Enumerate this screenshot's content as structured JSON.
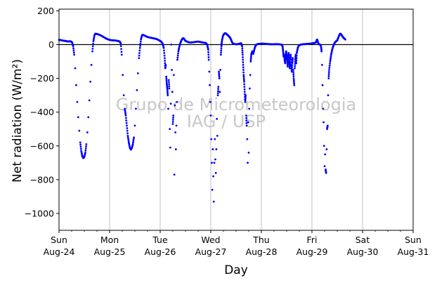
{
  "chart_data": {
    "type": "scatter",
    "xlabel": "Day",
    "ylabel": "Net radiation (W/m²)",
    "ylim": [
      -1100,
      210
    ],
    "xlim": [
      "2014-08-24",
      "2014-08-31"
    ],
    "yticks": [
      200,
      0,
      -200,
      -400,
      -600,
      -800,
      -1000
    ],
    "xticks": [
      {
        "day": "Sun",
        "date": "Aug-24"
      },
      {
        "day": "Mon",
        "date": "Aug-25"
      },
      {
        "day": "Tue",
        "date": "Aug-26"
      },
      {
        "day": "Wed",
        "date": "Aug-27"
      },
      {
        "day": "Thu",
        "date": "Aug-28"
      },
      {
        "day": "Fri",
        "date": "Aug-29"
      },
      {
        "day": "Sat",
        "date": "Aug-30"
      },
      {
        "day": "Sun",
        "date": "Aug-31"
      }
    ],
    "grid": "vertical",
    "zero_line": true,
    "marker_color": "#0000ff",
    "watermark": [
      "Grupo de Micrometeorologia",
      "IAG / USP"
    ],
    "series": [
      {
        "x_unit": "day",
        "points": [
          [
            0.0,
            28
          ],
          [
            0.03,
            27
          ],
          [
            0.06,
            25
          ],
          [
            0.09,
            23
          ],
          [
            0.12,
            22
          ],
          [
            0.15,
            20
          ],
          [
            0.18,
            18
          ],
          [
            0.21,
            20
          ],
          [
            0.24,
            18
          ],
          [
            0.26,
            12
          ],
          [
            0.28,
            -10
          ],
          [
            0.3,
            -60
          ],
          [
            0.32,
            -140
          ],
          [
            0.34,
            -240
          ],
          [
            0.36,
            -340
          ],
          [
            0.38,
            -430
          ],
          [
            0.4,
            -510
          ],
          [
            0.42,
            -580
          ],
          [
            0.44,
            -630
          ],
          [
            0.46,
            -660
          ],
          [
            0.48,
            -672
          ],
          [
            0.5,
            -665
          ],
          [
            0.52,
            -640
          ],
          [
            0.54,
            -590
          ],
          [
            0.56,
            -520
          ],
          [
            0.58,
            -430
          ],
          [
            0.6,
            -330
          ],
          [
            0.62,
            -220
          ],
          [
            0.64,
            -120
          ],
          [
            0.66,
            -40
          ],
          [
            0.68,
            20
          ],
          [
            0.7,
            55
          ],
          [
            0.72,
            65
          ],
          [
            0.76,
            62
          ],
          [
            0.8,
            58
          ],
          [
            0.84,
            52
          ],
          [
            0.88,
            45
          ],
          [
            0.92,
            38
          ],
          [
            0.96,
            32
          ],
          [
            1.0,
            28
          ],
          [
            1.04,
            26
          ],
          [
            1.08,
            25
          ],
          [
            1.12,
            24
          ],
          [
            1.16,
            22
          ],
          [
            1.2,
            18
          ],
          [
            1.22,
            8
          ],
          [
            1.24,
            -60
          ],
          [
            1.26,
            -180
          ],
          [
            1.28,
            -300
          ],
          [
            1.3,
            -380
          ],
          [
            1.32,
            -420
          ],
          [
            1.34,
            -480
          ],
          [
            1.36,
            -540
          ],
          [
            1.38,
            -580
          ],
          [
            1.4,
            -610
          ],
          [
            1.42,
            -622
          ],
          [
            1.44,
            -612
          ],
          [
            1.46,
            -590
          ],
          [
            1.48,
            -550
          ],
          [
            1.5,
            -480
          ],
          [
            1.52,
            -380
          ],
          [
            1.54,
            -270
          ],
          [
            1.56,
            -170
          ],
          [
            1.58,
            -80
          ],
          [
            1.6,
            -20
          ],
          [
            1.62,
            30
          ],
          [
            1.64,
            55
          ],
          [
            1.66,
            58
          ],
          [
            1.7,
            52
          ],
          [
            1.74,
            46
          ],
          [
            1.78,
            43
          ],
          [
            1.82,
            40
          ],
          [
            1.86,
            38
          ],
          [
            1.9,
            35
          ],
          [
            1.94,
            32
          ],
          [
            1.98,
            25
          ],
          [
            2.02,
            18
          ],
          [
            2.05,
            5
          ],
          [
            2.07,
            -20
          ],
          [
            2.09,
            -80
          ],
          [
            2.1,
            -140
          ],
          [
            2.11,
            -120
          ],
          [
            2.12,
            -190
          ],
          [
            2.13,
            -230
          ],
          [
            2.14,
            -260
          ],
          [
            2.15,
            -300
          ],
          [
            2.16,
            -380
          ],
          [
            2.17,
            -210
          ],
          [
            2.18,
            -260
          ],
          [
            2.19,
            -500
          ],
          [
            2.2,
            -610
          ],
          [
            2.21,
            -350
          ],
          [
            2.22,
            0
          ],
          [
            2.23,
            -150
          ],
          [
            2.24,
            -280
          ],
          [
            2.25,
            -470
          ],
          [
            2.26,
            -420
          ],
          [
            2.27,
            -180
          ],
          [
            2.28,
            -770
          ],
          [
            2.29,
            -360
          ],
          [
            2.3,
            -520
          ],
          [
            2.31,
            -620
          ],
          [
            2.32,
            -480
          ],
          [
            2.33,
            -340
          ],
          [
            2.34,
            -90
          ],
          [
            2.36,
            -40
          ],
          [
            2.38,
            -10
          ],
          [
            2.4,
            10
          ],
          [
            2.42,
            25
          ],
          [
            2.44,
            35
          ],
          [
            2.46,
            38
          ],
          [
            2.48,
            30
          ],
          [
            2.5,
            22
          ],
          [
            2.55,
            15
          ],
          [
            2.6,
            12
          ],
          [
            2.65,
            14
          ],
          [
            2.7,
            16
          ],
          [
            2.75,
            18
          ],
          [
            2.8,
            15
          ],
          [
            2.85,
            12
          ],
          [
            2.9,
            10
          ],
          [
            2.93,
            0
          ],
          [
            2.95,
            -30
          ],
          [
            2.96,
            -90
          ],
          [
            2.97,
            -160
          ],
          [
            2.98,
            -240
          ],
          [
            2.99,
            -340
          ],
          [
            3.0,
            -420
          ],
          [
            3.01,
            -560
          ],
          [
            3.02,
            -700
          ],
          [
            3.03,
            -860
          ],
          [
            3.04,
            -620
          ],
          [
            3.05,
            -780
          ],
          [
            3.06,
            -930
          ],
          [
            3.07,
            -700
          ],
          [
            3.08,
            -560
          ],
          [
            3.09,
            -680
          ],
          [
            3.1,
            -760
          ],
          [
            3.11,
            -620
          ],
          [
            3.12,
            -440
          ],
          [
            3.13,
            -540
          ],
          [
            3.14,
            -300
          ],
          [
            3.15,
            -250
          ],
          [
            3.16,
            -160
          ],
          [
            3.17,
            -200
          ],
          [
            3.18,
            -280
          ],
          [
            3.19,
            -150
          ],
          [
            3.2,
            -60
          ],
          [
            3.21,
            -10
          ],
          [
            3.22,
            20
          ],
          [
            3.24,
            50
          ],
          [
            3.26,
            62
          ],
          [
            3.28,
            68
          ],
          [
            3.3,
            65
          ],
          [
            3.32,
            60
          ],
          [
            3.34,
            55
          ],
          [
            3.36,
            48
          ],
          [
            3.38,
            42
          ],
          [
            3.4,
            30
          ],
          [
            3.42,
            15
          ],
          [
            3.44,
            5
          ],
          [
            3.48,
            3
          ],
          [
            3.52,
            2
          ],
          [
            3.56,
            5
          ],
          [
            3.6,
            8
          ],
          [
            3.62,
            -10
          ],
          [
            3.63,
            -60
          ],
          [
            3.64,
            -120
          ],
          [
            3.65,
            -180
          ],
          [
            3.66,
            -220
          ],
          [
            3.67,
            -280
          ],
          [
            3.68,
            -340
          ],
          [
            3.69,
            -300
          ],
          [
            3.7,
            -420
          ],
          [
            3.71,
            -480
          ],
          [
            3.72,
            -560
          ],
          [
            3.73,
            -700
          ],
          [
            3.74,
            -460
          ],
          [
            3.75,
            -640
          ],
          [
            3.76,
            -380
          ],
          [
            3.77,
            -260
          ],
          [
            3.78,
            -180
          ],
          [
            3.79,
            -100
          ],
          [
            3.8,
            -60
          ],
          [
            3.82,
            -40
          ],
          [
            3.84,
            -55
          ],
          [
            3.86,
            -30
          ],
          [
            3.88,
            -10
          ],
          [
            3.9,
            0
          ],
          [
            3.94,
            4
          ],
          [
            3.98,
            5
          ],
          [
            4.02,
            6
          ],
          [
            4.06,
            5
          ],
          [
            4.1,
            4
          ],
          [
            4.15,
            3
          ],
          [
            4.2,
            2
          ],
          [
            4.25,
            2
          ],
          [
            4.3,
            3
          ],
          [
            4.35,
            2
          ],
          [
            4.4,
            0
          ],
          [
            4.42,
            -10
          ],
          [
            4.43,
            -40
          ],
          [
            4.44,
            -70
          ],
          [
            4.45,
            -60
          ],
          [
            4.46,
            -90
          ],
          [
            4.47,
            -110
          ],
          [
            4.48,
            -70
          ],
          [
            4.49,
            -40
          ],
          [
            4.5,
            -60
          ],
          [
            4.51,
            -90
          ],
          [
            4.52,
            -130
          ],
          [
            4.53,
            -80
          ],
          [
            4.54,
            -50
          ],
          [
            4.55,
            -100
          ],
          [
            4.56,
            -140
          ],
          [
            4.57,
            -90
          ],
          [
            4.58,
            -60
          ],
          [
            4.59,
            -120
          ],
          [
            4.6,
            -160
          ],
          [
            4.61,
            -110
          ],
          [
            4.62,
            -80
          ],
          [
            4.63,
            -150
          ],
          [
            4.64,
            -200
          ],
          [
            4.65,
            -240
          ],
          [
            4.66,
            -140
          ],
          [
            4.67,
            -90
          ],
          [
            4.68,
            -60
          ],
          [
            4.69,
            -110
          ],
          [
            4.7,
            -50
          ],
          [
            4.72,
            -20
          ],
          [
            4.74,
            -5
          ],
          [
            4.78,
            0
          ],
          [
            4.82,
            2
          ],
          [
            4.86,
            3
          ],
          [
            4.9,
            4
          ],
          [
            4.94,
            5
          ],
          [
            4.98,
            6
          ],
          [
            5.02,
            8
          ],
          [
            5.06,
            10
          ],
          [
            5.08,
            15
          ],
          [
            5.1,
            30
          ],
          [
            5.11,
            25
          ],
          [
            5.12,
            10
          ],
          [
            5.14,
            2
          ],
          [
            5.16,
            0
          ],
          [
            5.18,
            -10
          ],
          [
            5.19,
            -40
          ],
          [
            5.2,
            -120
          ],
          [
            5.21,
            -240
          ],
          [
            5.22,
            -380
          ],
          [
            5.23,
            -460
          ],
          [
            5.24,
            -600
          ],
          [
            5.25,
            -720
          ],
          [
            5.26,
            -650
          ],
          [
            5.27,
            -740
          ],
          [
            5.28,
            -760
          ],
          [
            5.29,
            -620
          ],
          [
            5.3,
            -500
          ],
          [
            5.31,
            -480
          ],
          [
            5.32,
            -300
          ],
          [
            5.33,
            -200
          ],
          [
            5.34,
            -150
          ],
          [
            5.36,
            -100
          ],
          [
            5.38,
            -60
          ],
          [
            5.4,
            -30
          ],
          [
            5.42,
            -10
          ],
          [
            5.44,
            5
          ],
          [
            5.46,
            15
          ],
          [
            5.48,
            20
          ],
          [
            5.5,
            25
          ],
          [
            5.52,
            40
          ],
          [
            5.54,
            55
          ],
          [
            5.56,
            65
          ],
          [
            5.58,
            60
          ],
          [
            5.6,
            50
          ],
          [
            5.62,
            42
          ],
          [
            5.64,
            36
          ],
          [
            5.66,
            30
          ]
        ]
      }
    ]
  }
}
